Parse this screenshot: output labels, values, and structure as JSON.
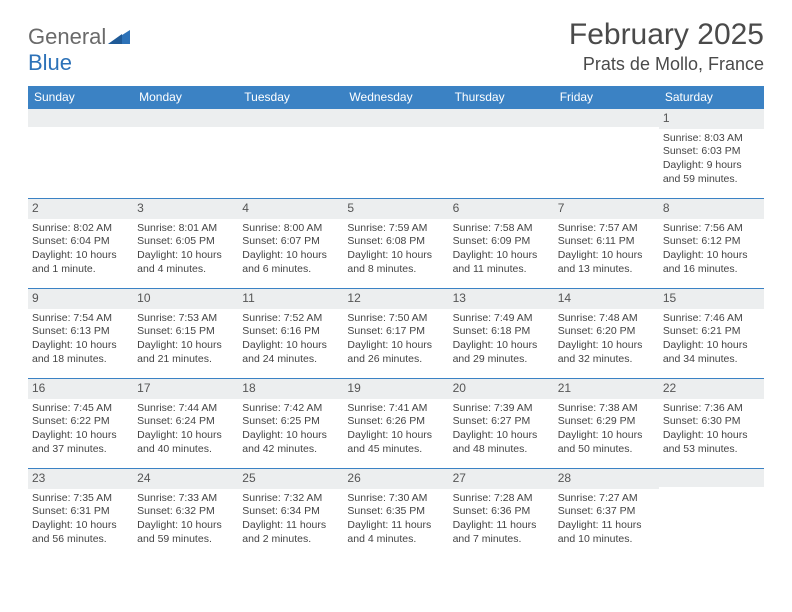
{
  "logo": {
    "general": "General",
    "blue": "Blue"
  },
  "month_title": "February 2025",
  "location": "Prats de Mollo, France",
  "day_headers": [
    "Sunday",
    "Monday",
    "Tuesday",
    "Wednesday",
    "Thursday",
    "Friday",
    "Saturday"
  ],
  "colors": {
    "header_bg": "#3b82c4",
    "header_text": "#ffffff",
    "row_border": "#3b82c4",
    "daynum_bg": "#eceeef",
    "logo_blue": "#2d72b8",
    "logo_gray": "#6a6a6a"
  },
  "weeks": [
    [
      {
        "n": "",
        "lines": []
      },
      {
        "n": "",
        "lines": []
      },
      {
        "n": "",
        "lines": []
      },
      {
        "n": "",
        "lines": []
      },
      {
        "n": "",
        "lines": []
      },
      {
        "n": "",
        "lines": []
      },
      {
        "n": "1",
        "lines": [
          "Sunrise: 8:03 AM",
          "Sunset: 6:03 PM",
          "Daylight: 9 hours and 59 minutes."
        ]
      }
    ],
    [
      {
        "n": "2",
        "lines": [
          "Sunrise: 8:02 AM",
          "Sunset: 6:04 PM",
          "Daylight: 10 hours and 1 minute."
        ]
      },
      {
        "n": "3",
        "lines": [
          "Sunrise: 8:01 AM",
          "Sunset: 6:05 PM",
          "Daylight: 10 hours and 4 minutes."
        ]
      },
      {
        "n": "4",
        "lines": [
          "Sunrise: 8:00 AM",
          "Sunset: 6:07 PM",
          "Daylight: 10 hours and 6 minutes."
        ]
      },
      {
        "n": "5",
        "lines": [
          "Sunrise: 7:59 AM",
          "Sunset: 6:08 PM",
          "Daylight: 10 hours and 8 minutes."
        ]
      },
      {
        "n": "6",
        "lines": [
          "Sunrise: 7:58 AM",
          "Sunset: 6:09 PM",
          "Daylight: 10 hours and 11 minutes."
        ]
      },
      {
        "n": "7",
        "lines": [
          "Sunrise: 7:57 AM",
          "Sunset: 6:11 PM",
          "Daylight: 10 hours and 13 minutes."
        ]
      },
      {
        "n": "8",
        "lines": [
          "Sunrise: 7:56 AM",
          "Sunset: 6:12 PM",
          "Daylight: 10 hours and 16 minutes."
        ]
      }
    ],
    [
      {
        "n": "9",
        "lines": [
          "Sunrise: 7:54 AM",
          "Sunset: 6:13 PM",
          "Daylight: 10 hours and 18 minutes."
        ]
      },
      {
        "n": "10",
        "lines": [
          "Sunrise: 7:53 AM",
          "Sunset: 6:15 PM",
          "Daylight: 10 hours and 21 minutes."
        ]
      },
      {
        "n": "11",
        "lines": [
          "Sunrise: 7:52 AM",
          "Sunset: 6:16 PM",
          "Daylight: 10 hours and 24 minutes."
        ]
      },
      {
        "n": "12",
        "lines": [
          "Sunrise: 7:50 AM",
          "Sunset: 6:17 PM",
          "Daylight: 10 hours and 26 minutes."
        ]
      },
      {
        "n": "13",
        "lines": [
          "Sunrise: 7:49 AM",
          "Sunset: 6:18 PM",
          "Daylight: 10 hours and 29 minutes."
        ]
      },
      {
        "n": "14",
        "lines": [
          "Sunrise: 7:48 AM",
          "Sunset: 6:20 PM",
          "Daylight: 10 hours and 32 minutes."
        ]
      },
      {
        "n": "15",
        "lines": [
          "Sunrise: 7:46 AM",
          "Sunset: 6:21 PM",
          "Daylight: 10 hours and 34 minutes."
        ]
      }
    ],
    [
      {
        "n": "16",
        "lines": [
          "Sunrise: 7:45 AM",
          "Sunset: 6:22 PM",
          "Daylight: 10 hours and 37 minutes."
        ]
      },
      {
        "n": "17",
        "lines": [
          "Sunrise: 7:44 AM",
          "Sunset: 6:24 PM",
          "Daylight: 10 hours and 40 minutes."
        ]
      },
      {
        "n": "18",
        "lines": [
          "Sunrise: 7:42 AM",
          "Sunset: 6:25 PM",
          "Daylight: 10 hours and 42 minutes."
        ]
      },
      {
        "n": "19",
        "lines": [
          "Sunrise: 7:41 AM",
          "Sunset: 6:26 PM",
          "Daylight: 10 hours and 45 minutes."
        ]
      },
      {
        "n": "20",
        "lines": [
          "Sunrise: 7:39 AM",
          "Sunset: 6:27 PM",
          "Daylight: 10 hours and 48 minutes."
        ]
      },
      {
        "n": "21",
        "lines": [
          "Sunrise: 7:38 AM",
          "Sunset: 6:29 PM",
          "Daylight: 10 hours and 50 minutes."
        ]
      },
      {
        "n": "22",
        "lines": [
          "Sunrise: 7:36 AM",
          "Sunset: 6:30 PM",
          "Daylight: 10 hours and 53 minutes."
        ]
      }
    ],
    [
      {
        "n": "23",
        "lines": [
          "Sunrise: 7:35 AM",
          "Sunset: 6:31 PM",
          "Daylight: 10 hours and 56 minutes."
        ]
      },
      {
        "n": "24",
        "lines": [
          "Sunrise: 7:33 AM",
          "Sunset: 6:32 PM",
          "Daylight: 10 hours and 59 minutes."
        ]
      },
      {
        "n": "25",
        "lines": [
          "Sunrise: 7:32 AM",
          "Sunset: 6:34 PM",
          "Daylight: 11 hours and 2 minutes."
        ]
      },
      {
        "n": "26",
        "lines": [
          "Sunrise: 7:30 AM",
          "Sunset: 6:35 PM",
          "Daylight: 11 hours and 4 minutes."
        ]
      },
      {
        "n": "27",
        "lines": [
          "Sunrise: 7:28 AM",
          "Sunset: 6:36 PM",
          "Daylight: 11 hours and 7 minutes."
        ]
      },
      {
        "n": "28",
        "lines": [
          "Sunrise: 7:27 AM",
          "Sunset: 6:37 PM",
          "Daylight: 11 hours and 10 minutes."
        ]
      },
      {
        "n": "",
        "lines": []
      }
    ]
  ]
}
